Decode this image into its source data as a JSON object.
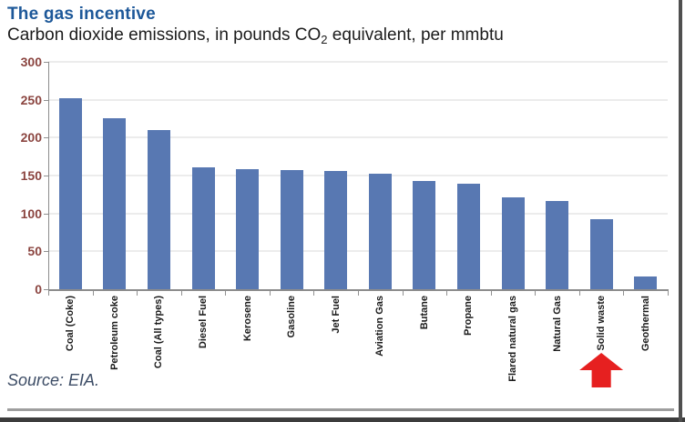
{
  "header": {
    "title": "The gas incentive",
    "subtitle_pre": "Carbon dioxide emissions, in pounds CO",
    "subtitle_sub": "2",
    "subtitle_post": " equivalent, per mmbtu"
  },
  "footer": {
    "source": "Source: EIA."
  },
  "colors": {
    "title": "#1d5899",
    "subtitle": "#1c1c1c",
    "bar": "#5878b2",
    "y_tick_label": "#8b4540",
    "x_tick_label": "#1b1b1b",
    "gridline": "#ececec",
    "axis": "#8c8c8c",
    "arrow": "#e62020",
    "source": "#3d4d66"
  },
  "chart_data": {
    "type": "bar",
    "title": "The gas incentive",
    "subtitle": "Carbon dioxide emissions, in pounds CO2 equivalent, per mmbtu",
    "categories": [
      "Coal (Coke)",
      "Petroleum coke",
      "Coal (All types)",
      "Diesel Fuel",
      "Kerosene",
      "Gasoline",
      "Jet Fuel",
      "Aviation Gas",
      "Butane",
      "Propane",
      "Flared natural gas",
      "Natural Gas",
      "Solid waste",
      "Geothermal"
    ],
    "values": [
      252,
      226,
      210,
      161,
      159,
      157,
      156,
      152,
      143,
      139,
      121,
      117,
      92,
      17
    ],
    "xlabel": "",
    "ylabel": "",
    "ylim": [
      0,
      300
    ],
    "yticks": [
      0,
      50,
      100,
      150,
      200,
      250,
      300
    ],
    "grid": "horizontal",
    "legend": "none",
    "x_label_rotation": 90,
    "annotation": {
      "type": "up-arrow",
      "target_category": "Solid waste",
      "color": "#e62020"
    },
    "source": "Source: EIA."
  }
}
